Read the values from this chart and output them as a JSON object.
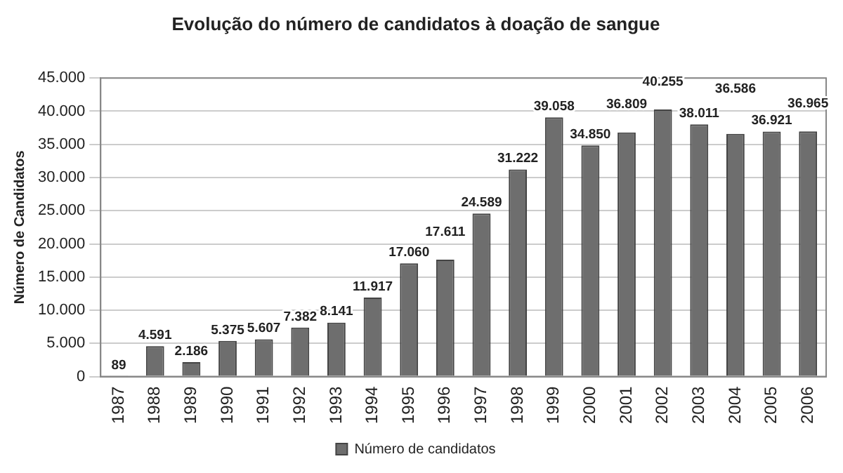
{
  "chart_data": {
    "type": "bar",
    "title": "Evolução do número de candidatos à doação de sangue",
    "ylabel": "Número de Candidatos",
    "categories": [
      "1987",
      "1988",
      "1989",
      "1990",
      "1991",
      "1992",
      "1993",
      "1994",
      "1995",
      "1996",
      "1997",
      "1998",
      "1999",
      "2000",
      "2001",
      "2002",
      "2003",
      "2004",
      "2005",
      "2006"
    ],
    "series": [
      {
        "name": "Número de candidatos",
        "color": "#6e6e6e",
        "values": [
          89,
          4591,
          2186,
          5375,
          5607,
          7382,
          8141,
          11917,
          17060,
          17611,
          24589,
          31222,
          39058,
          34850,
          36809,
          40255,
          38011,
          36586,
          36921,
          36965
        ],
        "value_labels": [
          "89",
          "4.591",
          "2.186",
          "5.375",
          "5.607",
          "7.382",
          "8.141",
          "11.917",
          "17.060",
          "17.611",
          "24.589",
          "31.222",
          "39.058",
          "34.850",
          "36.809",
          "40.255",
          "38.011",
          "36.586",
          "36.921",
          "36.965"
        ]
      }
    ],
    "ylim": [
      0,
      45000
    ],
    "yticks": [
      {
        "value": 0,
        "label": "0"
      },
      {
        "value": 5000,
        "label": "5.000"
      },
      {
        "value": 10000,
        "label": "10.000"
      },
      {
        "value": 15000,
        "label": "15.000"
      },
      {
        "value": 20000,
        "label": "20.000"
      },
      {
        "value": 25000,
        "label": "25.000"
      },
      {
        "value": 30000,
        "label": "30.000"
      },
      {
        "value": 35000,
        "label": "35.000"
      },
      {
        "value": 40000,
        "label": "40.000"
      },
      {
        "value": 45000,
        "label": "45.000"
      }
    ],
    "grid": "y",
    "legend": "bottom"
  }
}
